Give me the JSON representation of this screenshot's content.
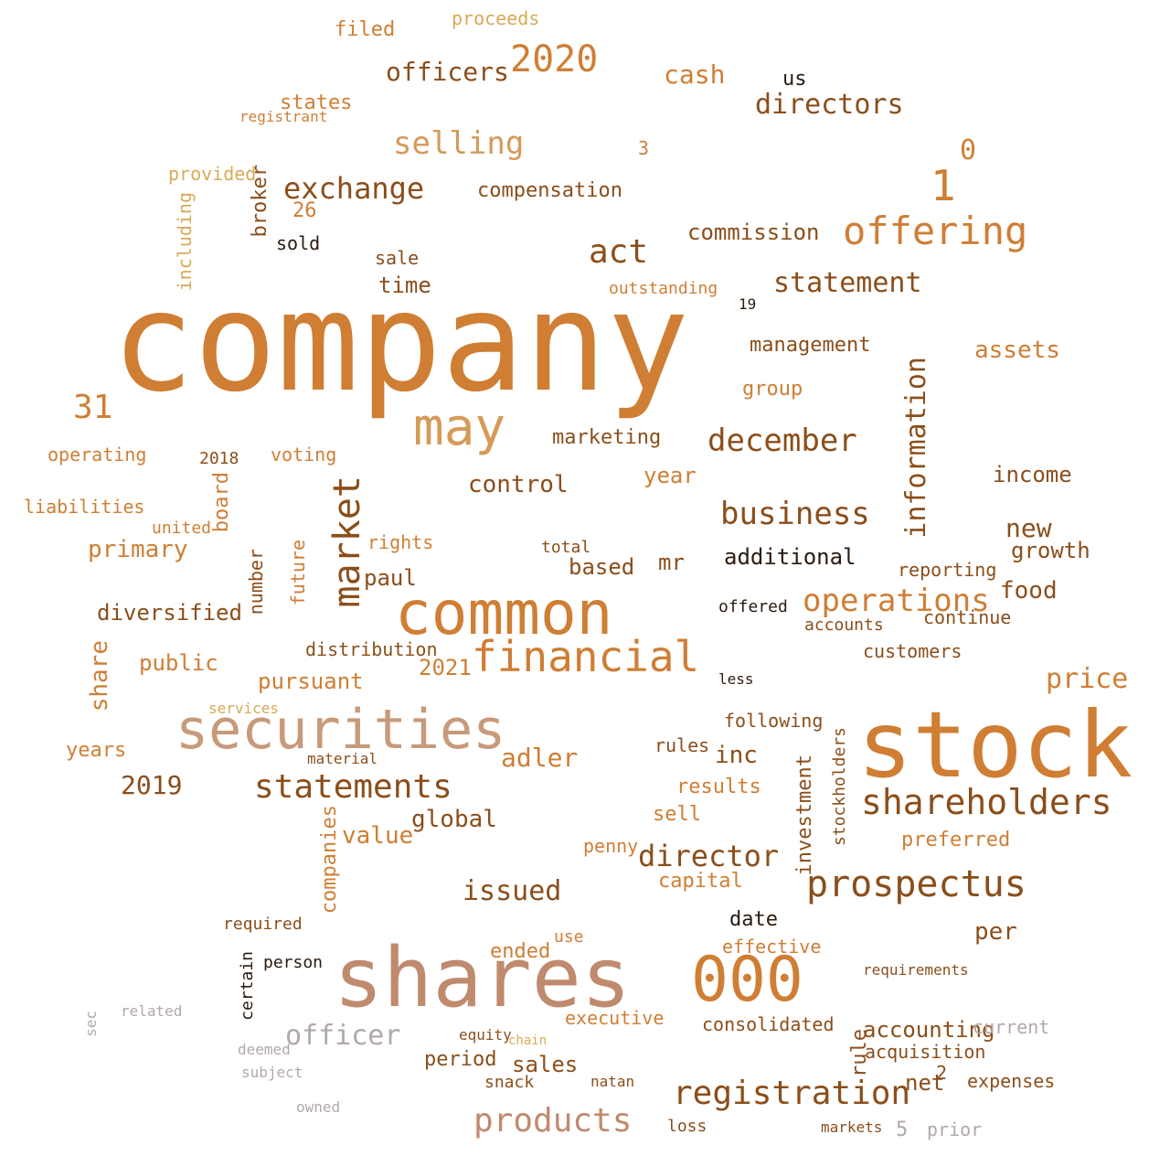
{
  "palette": {
    "dark": "#7a4316",
    "brown": "#8b4e1a",
    "orange": "#cf7e34",
    "orange_light": "#d69a58",
    "tan": "#c79a7a",
    "mauve": "#c08a6e",
    "gold": "#d8aa55",
    "grey": "#b3a8a8",
    "black": "#2b1a0f"
  },
  "words": [
    "company",
    "stock",
    "shares",
    "000",
    "common",
    "securities",
    "may",
    "financial",
    "offering",
    "statements",
    "prospectus",
    "shareholders",
    "registration",
    "2020",
    "business",
    "selling",
    "december",
    "director",
    "directors",
    "statement",
    "exchange",
    "market",
    "1",
    "31",
    "act",
    "information",
    "products",
    "officers",
    "operations",
    "officer",
    "adler",
    "issued",
    "cash",
    "price",
    "assets",
    "2019",
    "control",
    "global",
    "value",
    "sales",
    "accounting",
    "management",
    "compensation",
    "commission",
    "primary",
    "diversified",
    "public",
    "pursuant",
    "distribution",
    "additional",
    "growth",
    "new",
    "income",
    "food",
    "rules",
    "year",
    "inc",
    "results",
    "marketing",
    "time",
    "sale",
    "rights",
    "paul",
    "mr",
    "based",
    "total",
    "years",
    "share",
    "board",
    "broker",
    "number",
    "future",
    "companies",
    "investment",
    "stockholders",
    "rule",
    "continue",
    "reporting",
    "customers",
    "accounts",
    "preferred",
    "capital",
    "per",
    "net",
    "current",
    "expenses",
    "acquisition",
    "consolidated",
    "executive",
    "effective",
    "period",
    "ended",
    "date",
    "penny",
    "sell",
    "following",
    "outstanding",
    "voting",
    "operating",
    "liabilities",
    "united",
    "states",
    "registrant",
    "provided",
    "including",
    "filed",
    "proceeds",
    "us",
    "0",
    "26",
    "sold",
    "2021",
    "2018",
    "snack",
    "use",
    "requirements",
    "person",
    "required",
    "certain",
    "deemed",
    "subject",
    "owned",
    "related",
    "sec",
    "group",
    "services",
    "material",
    "offered",
    "less",
    "loss",
    "markets",
    "5",
    "prior",
    "2",
    "3",
    "19",
    "equity",
    "chain",
    "natan"
  ]
}
